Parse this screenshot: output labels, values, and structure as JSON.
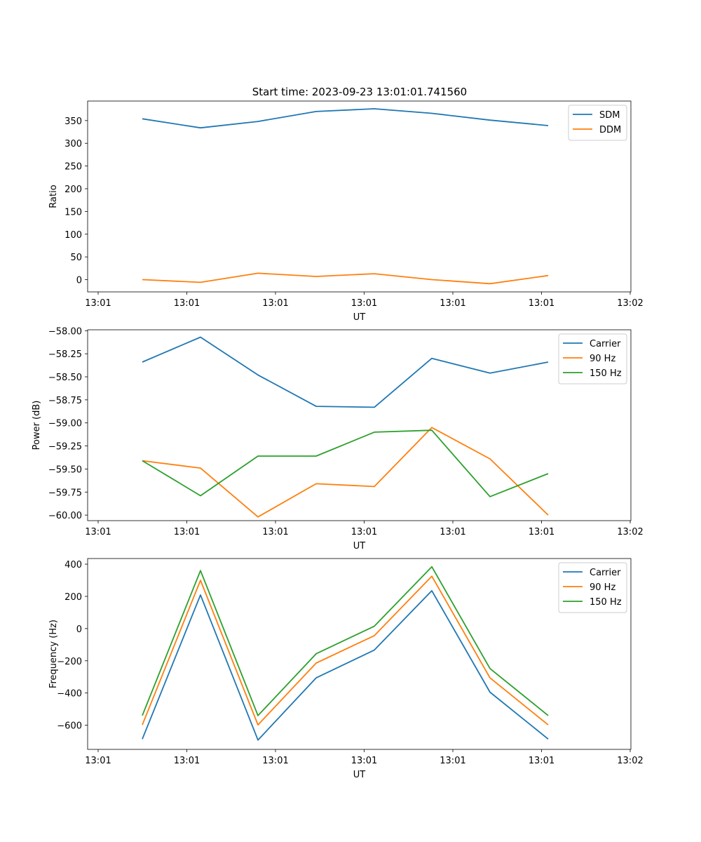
{
  "title": "Start time: 2023-09-23 13:01:01.741560",
  "colors": {
    "blue": "#1f77b4",
    "orange": "#ff7f0e",
    "green": "#2ca02c"
  },
  "chart_data": [
    {
      "type": "line",
      "title": "Start time: 2023-09-23 13:01:01.741560",
      "xlabel": "UT",
      "ylabel": "Ratio",
      "x_tick_labels": [
        "13:01",
        "13:01",
        "13:01",
        "13:01",
        "13:01",
        "13:01",
        "13:02"
      ],
      "ylim": [
        -27,
        393
      ],
      "yticks": [
        0,
        50,
        100,
        150,
        200,
        250,
        300,
        350
      ],
      "y_tick_labels": [
        "0",
        "50",
        "100",
        "150",
        "200",
        "250",
        "300",
        "350"
      ],
      "legend": "top-right",
      "grid": false,
      "series": [
        {
          "name": "SDM",
          "color": "#1f77b4",
          "values": [
            354,
            334,
            348,
            370,
            376,
            366,
            351,
            339
          ]
        },
        {
          "name": "DDM",
          "color": "#ff7f0e",
          "values": [
            0,
            -6,
            14,
            7,
            13,
            0,
            -9,
            9
          ]
        }
      ]
    },
    {
      "type": "line",
      "title": "",
      "xlabel": "UT",
      "ylabel": "Power (dB)",
      "x_tick_labels": [
        "13:01",
        "13:01",
        "13:01",
        "13:01",
        "13:01",
        "13:01",
        "13:02"
      ],
      "ylim": [
        -60.06,
        -57.99
      ],
      "yticks": [
        -60.0,
        -59.75,
        -59.5,
        -59.25,
        -59.0,
        -58.75,
        -58.5,
        -58.25,
        -58.0
      ],
      "y_tick_labels": [
        "−60.00",
        "−59.75",
        "−59.50",
        "−59.25",
        "−59.00",
        "−58.75",
        "−58.50",
        "−58.25",
        "−58.00"
      ],
      "legend": "top-right",
      "grid": false,
      "series": [
        {
          "name": "Carrier",
          "color": "#1f77b4",
          "values": [
            -58.34,
            -58.07,
            -58.48,
            -58.82,
            -58.83,
            -58.3,
            -58.46,
            -58.34
          ]
        },
        {
          "name": "90 Hz",
          "color": "#ff7f0e",
          "values": [
            -59.41,
            -59.49,
            -60.02,
            -59.66,
            -59.69,
            -59.05,
            -59.39,
            -60.0
          ]
        },
        {
          "name": "150 Hz",
          "color": "#2ca02c",
          "values": [
            -59.41,
            -59.79,
            -59.36,
            -59.36,
            -59.1,
            -59.08,
            -59.8,
            -59.55
          ]
        }
      ]
    },
    {
      "type": "line",
      "title": "",
      "xlabel": "UT",
      "ylabel": "Frequency (Hz)",
      "x_tick_labels": [
        "13:01",
        "13:01",
        "13:01",
        "13:01",
        "13:01",
        "13:01",
        "13:02"
      ],
      "ylim": [
        -750,
        435
      ],
      "yticks": [
        -600,
        -400,
        -200,
        0,
        200,
        400
      ],
      "y_tick_labels": [
        "−600",
        "−400",
        "−200",
        "0",
        "200",
        "400"
      ],
      "legend": "top-right",
      "grid": false,
      "series": [
        {
          "name": "Carrier",
          "color": "#1f77b4",
          "values": [
            -686,
            209,
            -692,
            -306,
            -133,
            235,
            -395,
            -686
          ]
        },
        {
          "name": "90 Hz",
          "color": "#ff7f0e",
          "values": [
            -598,
            300,
            -598,
            -214,
            -44,
            325,
            -306,
            -598
          ]
        },
        {
          "name": "150 Hz",
          "color": "#2ca02c",
          "values": [
            -540,
            360,
            -540,
            -156,
            15,
            384,
            -248,
            -540
          ]
        }
      ]
    }
  ]
}
